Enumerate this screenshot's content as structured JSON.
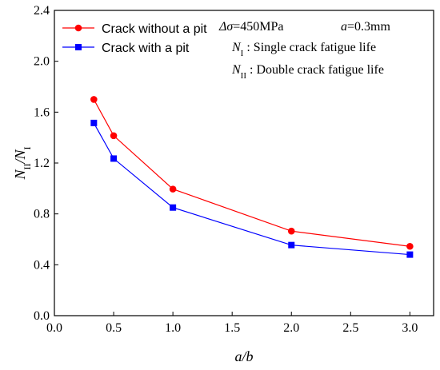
{
  "chart_data": {
    "type": "line",
    "xlabel": "a/b",
    "ylabel": {
      "prefix": "N",
      "prefix_sub": "II",
      "slash": "/",
      "suffix": "N",
      "suffix_sub": "I"
    },
    "xlim": [
      0.0,
      3.2
    ],
    "ylim": [
      0.0,
      2.4
    ],
    "xticks": [
      "0.0",
      "0.5",
      "1.0",
      "1.5",
      "2.0",
      "2.5",
      "3.0"
    ],
    "yticks": [
      "0.0",
      "0.4",
      "0.8",
      "1.2",
      "1.6",
      "2.0",
      "2.4"
    ],
    "series": [
      {
        "name": "Crack without a pit",
        "color": "#ff0000",
        "marker": "circle",
        "x": [
          0.333,
          0.5,
          1.0,
          2.0,
          3.0
        ],
        "y": [
          1.7,
          1.415,
          0.995,
          0.665,
          0.545
        ]
      },
      {
        "name": "Crack with a pit",
        "color": "#0000ff",
        "marker": "square",
        "x": [
          0.333,
          0.5,
          1.0,
          2.0,
          3.0
        ],
        "y": [
          1.515,
          1.235,
          0.85,
          0.555,
          0.48
        ]
      }
    ],
    "legend_position": "top-left",
    "annotations": {
      "stress": {
        "symbol": "Δσ",
        "value": "=450MPa"
      },
      "a_param": {
        "symbol": "a",
        "value": "=0.3mm"
      },
      "n1": {
        "symbol": "N",
        "sub": "I",
        "text": " : Single crack fatigue life"
      },
      "n2": {
        "symbol": "N",
        "sub": "II",
        "text": " : Double crack fatigue life"
      }
    },
    "grid": false
  }
}
